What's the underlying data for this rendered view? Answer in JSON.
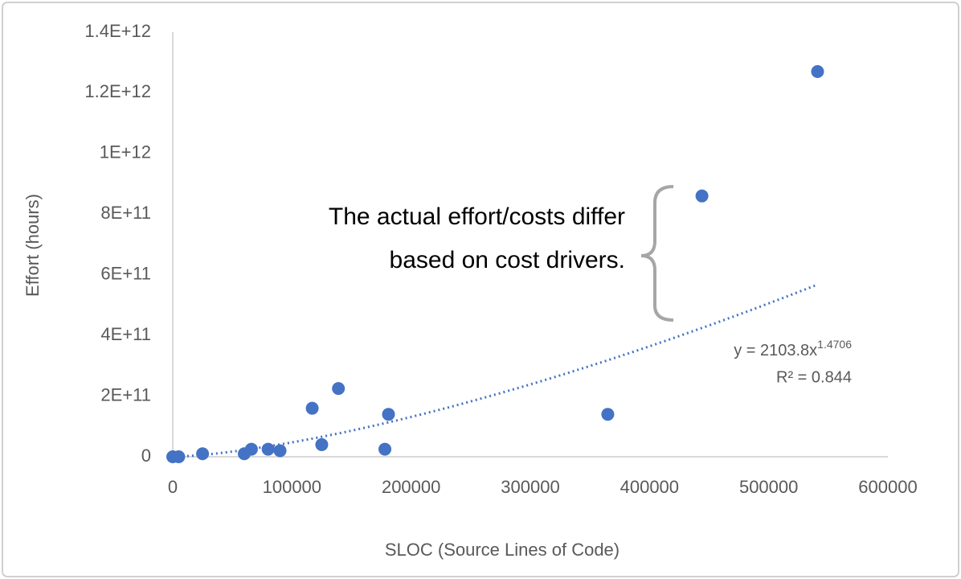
{
  "chart_data": {
    "type": "scatter",
    "xlabel": "SLOC (Source Lines of Code)",
    "ylabel": "Effort (hours)",
    "x": [
      0,
      5000,
      25000,
      60000,
      66000,
      80000,
      90000,
      117000,
      125000,
      139000,
      178000,
      181000,
      365000,
      444000,
      541000
    ],
    "values": [
      0,
      0,
      10000000000.0,
      10000000000.0,
      25000000000.0,
      25000000000.0,
      20000000000.0,
      160000000000.0,
      40000000000.0,
      225000000000.0,
      25000000000.0,
      140000000000.0,
      140000000000.0,
      860000000000.0,
      1270000000000.0
    ],
    "color": "#4472c4",
    "xlim": [
      0,
      600000
    ],
    "xticks": [
      0,
      100000,
      200000,
      300000,
      400000,
      500000,
      600000
    ],
    "ylim": [
      0,
      1400000000000.0
    ],
    "yticks": [
      0,
      {
        "value": 200000000000.0,
        "label": "2E+11"
      },
      {
        "value": 400000000000.0,
        "label": "4E+11"
      },
      {
        "value": 600000000000.0,
        "label": "6E+11"
      },
      {
        "value": 800000000000.0,
        "label": "8E+11"
      },
      {
        "value": 1000000000000.0,
        "label": "1E+12"
      },
      {
        "value": 1200000000000.0,
        "label": "1.2E+12"
      },
      {
        "value": 1400000000000.0,
        "label": "1.4E+12"
      }
    ],
    "grid": false,
    "trendline": {
      "coefficient": 2103.8,
      "exponent": 1.4706,
      "equation_label": "y = 2103.8x",
      "r2_label": "R² = 0.844",
      "color": "#4472c4"
    },
    "annotation": [
      "The actual effort/costs differ",
      "based on cost drivers."
    ]
  }
}
